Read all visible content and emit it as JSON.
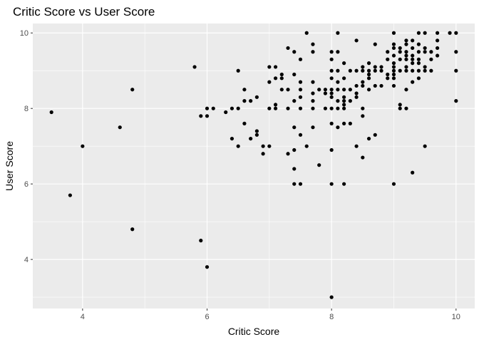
{
  "chart_data": {
    "type": "scatter",
    "title": "Critic Score vs User Score",
    "xlabel": "Critic Score",
    "ylabel": "User Score",
    "xlim": [
      3.2,
      10.3
    ],
    "ylim": [
      2.7,
      10.25
    ],
    "x_ticks": [
      4,
      6,
      8,
      10
    ],
    "y_ticks": [
      4,
      6,
      8,
      10
    ],
    "grid": true,
    "colors": {
      "panel": "#ebebeb",
      "grid": "#ffffff",
      "point": "#000000",
      "tick": "#4d4d4d"
    },
    "points": [
      [
        3.5,
        7.9
      ],
      [
        3.8,
        5.7
      ],
      [
        4.0,
        7.0
      ],
      [
        4.6,
        7.5
      ],
      [
        4.8,
        8.5
      ],
      [
        4.8,
        4.8
      ],
      [
        5.8,
        9.1
      ],
      [
        5.9,
        7.8
      ],
      [
        5.9,
        4.5
      ],
      [
        6.0,
        7.8
      ],
      [
        6.0,
        8.0
      ],
      [
        6.0,
        3.8
      ],
      [
        6.1,
        8.0
      ],
      [
        6.3,
        7.9
      ],
      [
        6.4,
        8.0
      ],
      [
        6.4,
        7.2
      ],
      [
        6.5,
        9.0
      ],
      [
        6.5,
        8.0
      ],
      [
        6.5,
        7.0
      ],
      [
        6.6,
        8.5
      ],
      [
        6.6,
        8.2
      ],
      [
        6.6,
        7.6
      ],
      [
        6.7,
        8.2
      ],
      [
        6.7,
        7.2
      ],
      [
        6.8,
        8.3
      ],
      [
        6.8,
        7.4
      ],
      [
        6.8,
        7.3
      ],
      [
        6.9,
        7.0
      ],
      [
        6.9,
        6.8
      ],
      [
        7.0,
        9.1
      ],
      [
        7.0,
        8.7
      ],
      [
        7.0,
        8.0
      ],
      [
        7.0,
        7.0
      ],
      [
        7.1,
        9.1
      ],
      [
        7.1,
        8.8
      ],
      [
        7.1,
        8.1
      ],
      [
        7.1,
        8.0
      ],
      [
        7.2,
        8.9
      ],
      [
        7.2,
        8.8
      ],
      [
        7.2,
        8.5
      ],
      [
        7.3,
        9.6
      ],
      [
        7.3,
        8.5
      ],
      [
        7.3,
        8.0
      ],
      [
        7.3,
        6.8
      ],
      [
        7.4,
        9.5
      ],
      [
        7.4,
        8.9
      ],
      [
        7.4,
        8.2
      ],
      [
        7.4,
        7.5
      ],
      [
        7.4,
        6.9
      ],
      [
        7.4,
        6.4
      ],
      [
        7.4,
        6.0
      ],
      [
        7.5,
        9.3
      ],
      [
        7.5,
        8.7
      ],
      [
        7.5,
        8.5
      ],
      [
        7.5,
        8.3
      ],
      [
        7.5,
        8.0
      ],
      [
        7.5,
        7.3
      ],
      [
        7.5,
        6.0
      ],
      [
        7.6,
        10.0
      ],
      [
        7.6,
        7.0
      ],
      [
        7.7,
        9.7
      ],
      [
        7.7,
        9.5
      ],
      [
        7.7,
        8.7
      ],
      [
        7.7,
        8.4
      ],
      [
        7.7,
        8.2
      ],
      [
        7.7,
        8.0
      ],
      [
        7.7,
        7.5
      ],
      [
        7.8,
        8.5
      ],
      [
        7.8,
        6.5
      ],
      [
        7.9,
        8.5
      ],
      [
        7.9,
        8.4
      ],
      [
        7.9,
        8.0
      ],
      [
        8.0,
        9.5
      ],
      [
        8.0,
        9.3
      ],
      [
        8.0,
        9.0
      ],
      [
        8.0,
        8.8
      ],
      [
        8.0,
        8.5
      ],
      [
        8.0,
        8.4
      ],
      [
        8.0,
        8.3
      ],
      [
        8.0,
        8.0
      ],
      [
        8.0,
        7.6
      ],
      [
        8.0,
        6.9
      ],
      [
        8.0,
        6.0
      ],
      [
        8.0,
        3.0
      ],
      [
        8.1,
        10.0
      ],
      [
        8.1,
        9.5
      ],
      [
        8.1,
        9.0
      ],
      [
        8.1,
        8.7
      ],
      [
        8.1,
        8.5
      ],
      [
        8.1,
        8.2
      ],
      [
        8.1,
        8.0
      ],
      [
        8.1,
        7.5
      ],
      [
        8.2,
        9.2
      ],
      [
        8.2,
        8.8
      ],
      [
        8.2,
        8.5
      ],
      [
        8.2,
        8.3
      ],
      [
        8.2,
        8.2
      ],
      [
        8.2,
        8.1
      ],
      [
        8.2,
        8.0
      ],
      [
        8.2,
        7.6
      ],
      [
        8.2,
        6.0
      ],
      [
        8.3,
        9.0
      ],
      [
        8.3,
        8.5
      ],
      [
        8.3,
        8.2
      ],
      [
        8.3,
        7.6
      ],
      [
        8.4,
        9.8
      ],
      [
        8.4,
        9.0
      ],
      [
        8.4,
        8.6
      ],
      [
        8.4,
        8.4
      ],
      [
        8.4,
        8.3
      ],
      [
        8.4,
        7.0
      ],
      [
        8.5,
        9.1
      ],
      [
        8.5,
        9.0
      ],
      [
        8.5,
        8.7
      ],
      [
        8.5,
        8.6
      ],
      [
        8.5,
        8.0
      ],
      [
        8.5,
        7.8
      ],
      [
        8.5,
        6.7
      ],
      [
        8.6,
        9.2
      ],
      [
        8.6,
        9.0
      ],
      [
        8.6,
        8.9
      ],
      [
        8.6,
        8.8
      ],
      [
        8.6,
        8.5
      ],
      [
        8.6,
        7.2
      ],
      [
        8.7,
        9.7
      ],
      [
        8.7,
        9.1
      ],
      [
        8.7,
        9.0
      ],
      [
        8.7,
        8.6
      ],
      [
        8.7,
        7.3
      ],
      [
        8.8,
        9.1
      ],
      [
        8.8,
        9.0
      ],
      [
        8.8,
        8.6
      ],
      [
        8.9,
        9.5
      ],
      [
        8.9,
        9.3
      ],
      [
        8.9,
        8.9
      ],
      [
        8.9,
        8.8
      ],
      [
        9.0,
        10.0
      ],
      [
        9.0,
        9.7
      ],
      [
        9.0,
        9.6
      ],
      [
        9.0,
        9.4
      ],
      [
        9.0,
        9.2
      ],
      [
        9.0,
        9.1
      ],
      [
        9.0,
        9.0
      ],
      [
        9.0,
        8.9
      ],
      [
        9.0,
        8.8
      ],
      [
        9.0,
        8.6
      ],
      [
        9.0,
        6.0
      ],
      [
        9.1,
        9.6
      ],
      [
        9.1,
        9.5
      ],
      [
        9.1,
        9.3
      ],
      [
        9.1,
        9.0
      ],
      [
        9.1,
        8.1
      ],
      [
        9.1,
        8.0
      ],
      [
        9.2,
        9.8
      ],
      [
        9.2,
        9.7
      ],
      [
        9.2,
        9.5
      ],
      [
        9.2,
        9.4
      ],
      [
        9.2,
        9.3
      ],
      [
        9.2,
        9.1
      ],
      [
        9.2,
        9.0
      ],
      [
        9.2,
        8.5
      ],
      [
        9.2,
        8.0
      ],
      [
        9.3,
        9.8
      ],
      [
        9.3,
        9.6
      ],
      [
        9.3,
        9.4
      ],
      [
        9.3,
        9.3
      ],
      [
        9.3,
        9.2
      ],
      [
        9.3,
        9.0
      ],
      [
        9.3,
        8.7
      ],
      [
        9.3,
        6.3
      ],
      [
        9.4,
        10.0
      ],
      [
        9.4,
        9.7
      ],
      [
        9.4,
        9.5
      ],
      [
        9.4,
        9.3
      ],
      [
        9.4,
        9.2
      ],
      [
        9.4,
        9.0
      ],
      [
        9.4,
        8.8
      ],
      [
        9.5,
        10.0
      ],
      [
        9.5,
        9.6
      ],
      [
        9.5,
        9.5
      ],
      [
        9.5,
        9.1
      ],
      [
        9.5,
        9.0
      ],
      [
        9.5,
        7.0
      ],
      [
        9.6,
        9.5
      ],
      [
        9.6,
        9.3
      ],
      [
        9.6,
        9.0
      ],
      [
        9.7,
        10.0
      ],
      [
        9.7,
        9.8
      ],
      [
        9.7,
        9.6
      ],
      [
        9.7,
        9.4
      ],
      [
        9.9,
        10.0
      ],
      [
        10.0,
        10.0
      ],
      [
        10.0,
        9.5
      ],
      [
        10.0,
        9.0
      ],
      [
        10.0,
        8.2
      ]
    ]
  }
}
